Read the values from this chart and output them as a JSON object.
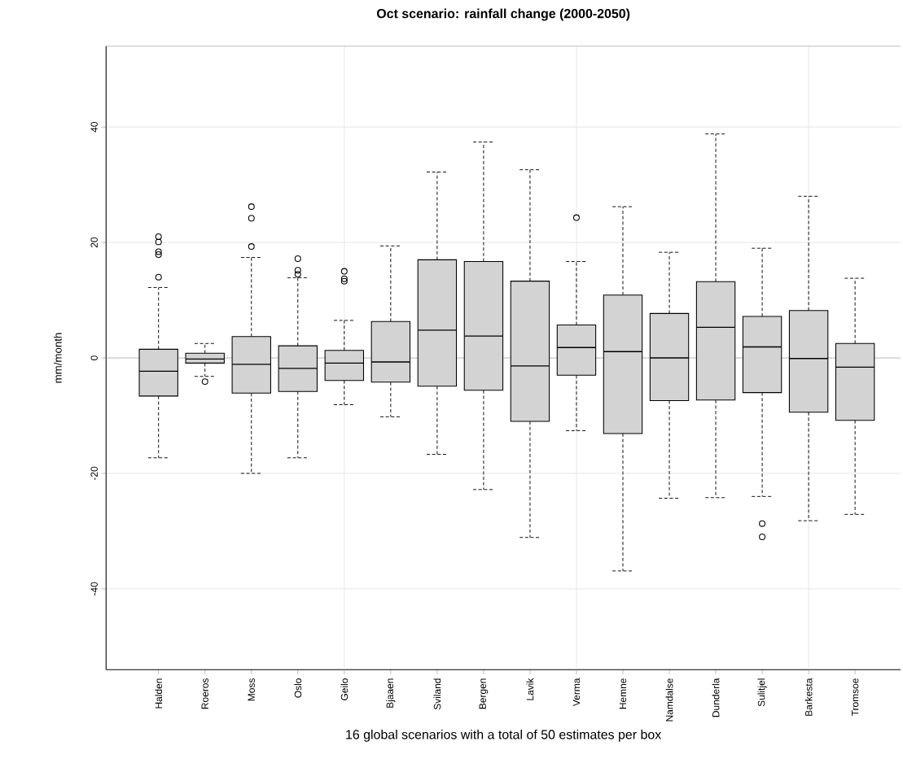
{
  "chart_data": {
    "type": "box",
    "title": "Oct  scenario: rainfall change (2000-2050)",
    "xlabel": "16 global scenarios with a total of 50 estimates per box",
    "ylabel": "mm/month",
    "categories": [
      "Halden",
      "Roeros",
      "Moss",
      "Oslo",
      "Geilo",
      "Bjaaen",
      "Sviland",
      "Bergen",
      "Lavik",
      "Verma",
      "Hemne",
      "Namdalse",
      "Dunderla",
      "Sulitjel",
      "Barkesta",
      "Tromsoe"
    ],
    "color": "#d3d3d3",
    "boxes": [
      {
        "low": -17.3,
        "q1": -6.6,
        "median": -2.3,
        "q3": 1.5,
        "high": 12.2,
        "outliers": [
          21.0,
          20.1,
          18.4,
          17.9,
          14.0
        ]
      },
      {
        "low": -3.2,
        "q1": -0.9,
        "median": -0.2,
        "q3": 0.8,
        "high": 2.5,
        "outliers": [
          -4.1
        ]
      },
      {
        "low": -20.0,
        "q1": -6.1,
        "median": -1.1,
        "q3": 3.7,
        "high": 17.4,
        "outliers": [
          26.2,
          24.2,
          19.3
        ]
      },
      {
        "low": -17.3,
        "q1": -5.8,
        "median": -1.8,
        "q3": 2.1,
        "high": 13.9,
        "outliers": [
          17.2,
          15.2,
          14.5
        ]
      },
      {
        "low": -8.1,
        "q1": -3.9,
        "median": -0.9,
        "q3": 1.3,
        "high": 6.5,
        "outliers": [
          15.0,
          13.7,
          13.3
        ]
      },
      {
        "low": -10.2,
        "q1": -4.2,
        "median": -0.7,
        "q3": 6.3,
        "high": 19.4
      },
      {
        "low": -16.7,
        "q1": -4.9,
        "median": 4.8,
        "q3": 17.0,
        "high": 32.2
      },
      {
        "low": -22.8,
        "q1": -5.6,
        "median": 3.8,
        "q3": 16.7,
        "high": 37.4
      },
      {
        "low": -31.1,
        "q1": -11.0,
        "median": -1.4,
        "q3": 13.3,
        "high": 32.6
      },
      {
        "low": -12.6,
        "q1": -3.0,
        "median": 1.8,
        "q3": 5.7,
        "high": 16.7,
        "outliers": [
          24.3
        ]
      },
      {
        "low": -36.9,
        "q1": -13.1,
        "median": 1.1,
        "q3": 10.9,
        "high": 26.2
      },
      {
        "low": -24.3,
        "q1": -7.4,
        "median": 0.0,
        "q3": 7.7,
        "high": 18.3
      },
      {
        "low": -24.2,
        "q1": -7.3,
        "median": 5.3,
        "q3": 13.2,
        "high": 38.8
      },
      {
        "low": -24.0,
        "q1": -6.0,
        "median": 1.9,
        "q3": 7.2,
        "high": 19.0,
        "outliers": [
          -28.7,
          -31.0
        ]
      },
      {
        "low": -28.2,
        "q1": -9.4,
        "median": -0.1,
        "q3": 8.2,
        "high": 28.0
      },
      {
        "low": -27.1,
        "q1": -10.8,
        "median": -1.6,
        "q3": 2.5,
        "high": 13.8
      }
    ],
    "ylim": [
      -54,
      54
    ],
    "yticks": [
      -40,
      -20,
      0,
      20,
      40
    ],
    "grid": true,
    "ref_lines": [
      {
        "axis": "y",
        "value": 0,
        "line_style": "dotted"
      }
    ]
  }
}
